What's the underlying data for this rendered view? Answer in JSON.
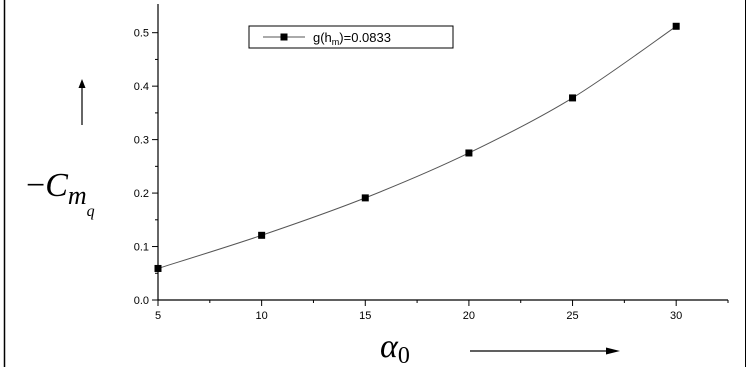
{
  "chart_data": {
    "type": "line",
    "title": "",
    "series": [
      {
        "name": "g(h_m)=0.0833",
        "x": [
          5,
          10,
          15,
          20,
          25,
          30
        ],
        "y": [
          0.059,
          0.121,
          0.191,
          0.275,
          0.378,
          0.512
        ]
      }
    ],
    "xlim": [
      5,
      32.5
    ],
    "ylim": [
      0,
      0.52
    ],
    "xticks": [
      "5",
      "10",
      "15",
      "20",
      "25",
      "30"
    ],
    "yticks": [
      "0.0",
      "0.1",
      "0.2",
      "0.3",
      "0.4",
      "0.5"
    ],
    "grid": false,
    "legend_position": "top-left",
    "legend": {
      "label_prefix": "g(h",
      "label_subscript": "m",
      "label_suffix": ")=0.0833"
    },
    "ylabel": {
      "sign": "−",
      "main": "C",
      "sub1": "m",
      "sub2": "q"
    },
    "xlabel": {
      "main": "α",
      "sub": "0"
    },
    "colors": {
      "line": "#555555",
      "marker": "#000000",
      "axis": "#000000"
    }
  }
}
